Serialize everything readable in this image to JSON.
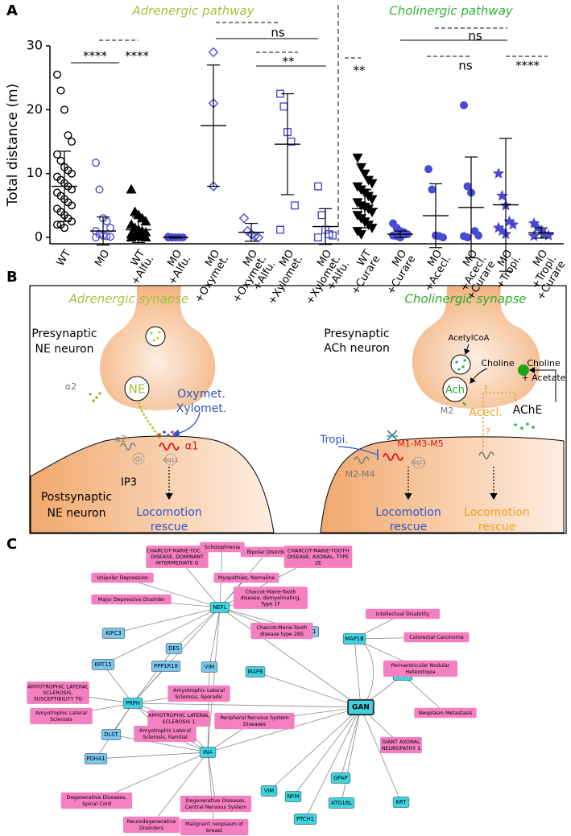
{
  "chart_data": {
    "type": "strip",
    "panel_label": "A",
    "ylabel": "Total distance (m)",
    "pathways": [
      "Adrenergic pathway",
      "Cholinergic pathway"
    ],
    "ylim": [
      -1,
      30
    ],
    "yticks": [
      0,
      10,
      20,
      30
    ],
    "categories": [
      [
        "WT"
      ],
      [
        "MO"
      ],
      [
        "WT",
        "+Alfu."
      ],
      [
        "MO",
        "+Alfu."
      ],
      [
        "MO",
        "+Oxymet."
      ],
      [
        "MO",
        "+Oxymet.",
        "+Alfu."
      ],
      [
        "MO",
        "+Xylomet."
      ],
      [
        "MO",
        "+Xylomet.",
        "+Alfu."
      ],
      [
        "WT",
        "+Curare"
      ],
      [
        "MO",
        "+Curare"
      ],
      [
        "MO",
        "+Acecl."
      ],
      [
        "MO",
        "+Acecl.",
        "+Curare"
      ],
      [
        "MO",
        "+Tropi."
      ],
      [
        "MO",
        "+Tropi.",
        "+Curare"
      ]
    ],
    "series": [
      {
        "marker": "circle",
        "filled": false,
        "color": "#000000",
        "mean": 8,
        "sd": 5.5,
        "points": [
          25.5,
          23,
          20,
          16,
          15,
          13,
          12,
          11,
          10.5,
          10,
          9.5,
          9,
          8.5,
          8,
          7.5,
          7,
          6.5,
          6,
          5.5,
          5,
          4.5,
          4,
          3.5,
          3,
          2.5,
          2,
          2,
          1.5
        ]
      },
      {
        "marker": "circle",
        "filled": false,
        "color": "#4a4ad6",
        "mean": 1,
        "sd": 2.2,
        "points": [
          11.7,
          7.5,
          3,
          2.5,
          1.5,
          1,
          0.5,
          0.3,
          0.2,
          0.1,
          0
        ]
      },
      {
        "marker": "triangle",
        "filled": true,
        "color": "#000000",
        "mean": 1.2,
        "sd": 2,
        "points": [
          7.5,
          4,
          3.5,
          3,
          2.5,
          2,
          1.5,
          1.2,
          1,
          0.8,
          0.5,
          0.3,
          0.2,
          0.1,
          0,
          0
        ]
      },
      {
        "marker": "circle",
        "filled": true,
        "color": "#4a4ad6",
        "mean": 0,
        "sd": 0.1,
        "points": [
          0.1,
          0,
          0,
          0,
          0,
          0,
          0
        ]
      },
      {
        "marker": "diamond",
        "filled": false,
        "color": "#4a4ad6",
        "mean": 17.5,
        "sd": 9.5,
        "points": [
          29,
          21,
          8
        ]
      },
      {
        "marker": "diamond",
        "filled": false,
        "color": "#4a4ad6",
        "mean": 0.8,
        "sd": 1.4,
        "points": [
          3,
          1,
          0.5,
          0.2,
          0
        ]
      },
      {
        "marker": "square",
        "filled": false,
        "color": "#4a4ad6",
        "mean": 14.6,
        "sd": 7.9,
        "points": [
          22.5,
          20.5,
          16.5,
          15,
          5,
          1.2
        ]
      },
      {
        "marker": "square",
        "filled": false,
        "color": "#4a4ad6",
        "mean": 1.7,
        "sd": 2.8,
        "points": [
          8,
          3.5,
          1.2,
          0.5,
          0.3,
          0
        ]
      },
      {
        "marker": "tridown",
        "filled": true,
        "color": "#000000",
        "mean": 4.5,
        "sd": 3,
        "points": [
          12.5,
          11,
          10,
          9,
          8.5,
          8,
          7.5,
          7,
          6.5,
          6,
          5.5,
          5,
          4.8,
          4.5,
          4,
          3.5,
          3,
          2.5,
          2,
          1.5,
          1,
          0.5
        ]
      },
      {
        "marker": "circle",
        "filled": true,
        "color": "#4a4ad6",
        "mean": 0.5,
        "sd": 0.5,
        "points": [
          2.2,
          1.5,
          1,
          0.8,
          0.5,
          0.3,
          0.2,
          0
        ]
      },
      {
        "marker": "circle",
        "filled": true,
        "color": "#4a4ad6",
        "mean": 3.4,
        "sd": 5,
        "points": [
          10.7,
          7.5,
          0.3,
          0.2,
          0
        ]
      },
      {
        "marker": "circle",
        "filled": true,
        "color": "#4a4ad6",
        "mean": 4.7,
        "sd": 7.9,
        "points": [
          20.7,
          8,
          7,
          1,
          0.3,
          0.2,
          0
        ]
      },
      {
        "marker": "star",
        "filled": true,
        "color": "#4a4ad6",
        "mean": 5.1,
        "sd": 10.4,
        "points": [
          10,
          6.5,
          5,
          2.5,
          2,
          1.5,
          1,
          0.5
        ]
      },
      {
        "marker": "star",
        "filled": true,
        "color": "#4a4ad6",
        "mean": 0.7,
        "sd": 0.8,
        "points": [
          2.2,
          1.5,
          1,
          0.5,
          0.3,
          0.2
        ]
      }
    ],
    "annotations": [
      "****",
      "****",
      "ns",
      "**",
      "**",
      "ns",
      "ns",
      "****"
    ]
  },
  "panel_b": {
    "texts": [
      "B",
      "Adrenergic synapse",
      "Cholinergic synapse",
      "Presynaptic",
      "NE neuron",
      "α2",
      "NE",
      "Oxymet.",
      "Xylomet.",
      "α2",
      "Gi",
      "α1",
      "Gq11",
      "IP3",
      "Postsynaptic",
      "NE neuron",
      "Locomotion",
      "rescue",
      "Presynaptic",
      "ACh neuron",
      "AcetylCoA",
      "Choline",
      "Choline",
      "+ Acetate",
      "M2",
      "Ach",
      "?",
      "Acecl.",
      "?",
      "AChE",
      "Tropi.",
      "M1-M3-M5",
      "Gq11",
      "M2-M4",
      "Locomotion",
      "rescue",
      "Locomotion",
      "rescue"
    ]
  },
  "panel_c": {
    "label": "C",
    "nodes": [
      {
        "label": [
          "NEFL"
        ],
        "kind": "gene"
      },
      {
        "label": [
          "PRPH"
        ],
        "kind": "gene"
      },
      {
        "label": [
          "INA"
        ],
        "kind": "gene"
      },
      {
        "label": [
          "GAN"
        ],
        "kind": "query"
      },
      {
        "label": [
          "MAP1B"
        ],
        "kind": "gene"
      },
      {
        "label": [
          "TBCB"
        ],
        "kind": "gene"
      },
      {
        "label": [
          "MAP8"
        ],
        "kind": "gene"
      },
      {
        "label": [
          "VIM"
        ],
        "kind": "gene"
      },
      {
        "label": [
          "NFM"
        ],
        "kind": "gene"
      },
      {
        "label": [
          "GFAP"
        ],
        "kind": "gene"
      },
      {
        "label": [
          "ATG16L"
        ],
        "kind": "gene"
      },
      {
        "label": [
          "PTCH1"
        ],
        "kind": "gene"
      },
      {
        "label": [
          "KRT"
        ],
        "kind": "gene"
      },
      {
        "label": [
          "KIFC3"
        ],
        "kind": "partner"
      },
      {
        "label": [
          "DES"
        ],
        "kind": "partner"
      },
      {
        "label": [
          "VIM"
        ],
        "kind": "partner"
      },
      {
        "label": [
          "PPP1R18"
        ],
        "kind": "partner"
      },
      {
        "label": [
          "KRT15"
        ],
        "kind": "partner"
      },
      {
        "label": [
          "DLST"
        ],
        "kind": "partner"
      },
      {
        "label": [
          "PDHA1"
        ],
        "kind": "partner"
      },
      {
        "label": [
          "SCHIP1"
        ],
        "kind": "partner"
      },
      {
        "label": [
          "CHARCOT-MARIE-TOOTH",
          "DISEASE, DOMINANT",
          "INTERMEDIATE G"
        ],
        "kind": "disease"
      },
      {
        "label": [
          "Schizophrenia"
        ],
        "kind": "disease"
      },
      {
        "label": [
          "Bipolar Disorder"
        ],
        "kind": "disease"
      },
      {
        "label": [
          "CHARCOT-MARIE-TOOTH",
          "DISEASE, AXONAL, TYPE",
          "2E"
        ],
        "kind": "disease"
      },
      {
        "label": [
          "Unipolar Depression"
        ],
        "kind": "disease"
      },
      {
        "label": [
          "Myopathies, Nemaline"
        ],
        "kind": "disease"
      },
      {
        "label": [
          "Charcot-Marie-Tooth",
          "disease, demyelinating,",
          "Type 1F"
        ],
        "kind": "disease"
      },
      {
        "label": [
          "Major Depressive Disorder"
        ],
        "kind": "disease"
      },
      {
        "label": [
          "Charcot-Marie-Tooth",
          "disease type 2B5"
        ],
        "kind": "disease"
      },
      {
        "label": [
          "Intellectual Disability"
        ],
        "kind": "disease"
      },
      {
        "label": [
          "Colorectal Carcinoma"
        ],
        "kind": "disease"
      },
      {
        "label": [
          "Periventricular Nodular",
          "Heterotopia"
        ],
        "kind": "disease"
      },
      {
        "label": [
          "Neoplasm Metastasis"
        ],
        "kind": "disease"
      },
      {
        "label": [
          "GIANT AXONAL",
          "NEUROPATHY 1"
        ],
        "kind": "disease"
      },
      {
        "label": [
          "AMYOTROPHIC LATERAL",
          "SCLEROSIS,",
          "SUSCEPTIBILITY TO"
        ],
        "kind": "disease"
      },
      {
        "label": [
          "Amyotrophic Lateral",
          "Sclerosis"
        ],
        "kind": "disease"
      },
      {
        "label": [
          "Amyotrophic Lateral",
          "Sclerosis, Sporadic"
        ],
        "kind": "disease"
      },
      {
        "label": [
          "AMYOTROPHIC LATERAL",
          "SCLEROSIS 1"
        ],
        "kind": "disease"
      },
      {
        "label": [
          "Amyotrophic Lateral",
          "Sclerosis, Familial"
        ],
        "kind": "disease"
      },
      {
        "label": [
          "Peripheral Nervous System",
          "Diseases"
        ],
        "kind": "disease"
      },
      {
        "label": [
          "Degenerative Diseases,",
          "Spinal Cord"
        ],
        "kind": "disease"
      },
      {
        "label": [
          "Degenerative Diseases,",
          "Central Nervous System"
        ],
        "kind": "disease"
      },
      {
        "label": [
          "Neurodegenerative",
          "Disorders"
        ],
        "kind": "disease"
      },
      {
        "label": [
          "Malignant neoplasm of",
          "breast"
        ],
        "kind": "disease"
      }
    ]
  }
}
